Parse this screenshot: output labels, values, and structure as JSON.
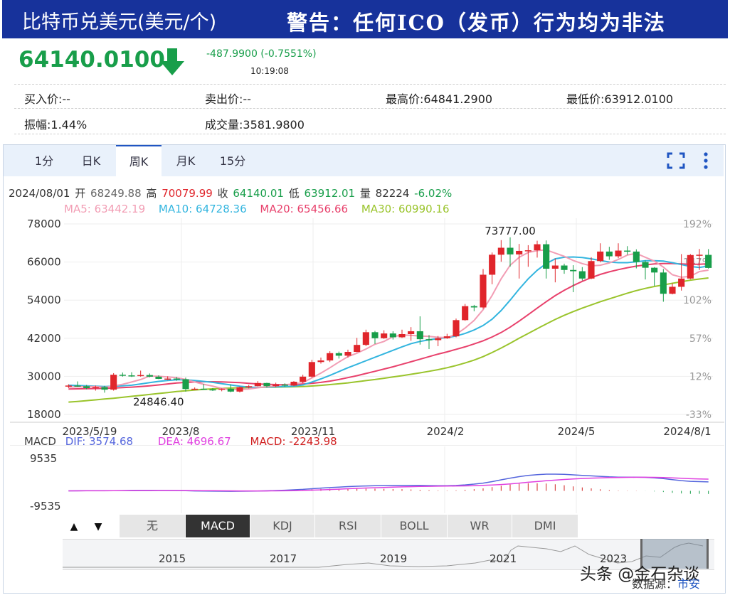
{
  "header": {
    "title": "比特币兑美元(美元/个)",
    "warning": "警告：任何ICO（发币）行为均为非法"
  },
  "quote": {
    "price": "64140.0100",
    "change": "-487.9900 (-0.7551%)",
    "time": "10:19:08",
    "bid": "买入价:--",
    "ask": "卖出价:--",
    "high": "最高价:64841.2900",
    "low": "最低价:63912.0100",
    "amplitude": "振幅:1.44%",
    "volume": "成交量:3581.9800"
  },
  "tabs": [
    "1分",
    "日K",
    "周K",
    "月K",
    "15分"
  ],
  "active_tab": "周K",
  "info_line": {
    "date": "2024/08/01",
    "open_label": "开",
    "open": "68249.88",
    "high_label": "高",
    "high": "70079.99",
    "close_label": "收",
    "close": "64140.01",
    "low_label": "低",
    "low": "63912.01",
    "vol_label": "量",
    "vol": "82224",
    "pct": "-6.02%"
  },
  "ma_line": {
    "ma5": "MA5: 63442.19",
    "ma10": "MA10: 64728.36",
    "ma20": "MA20: 65456.66",
    "ma30": "MA30: 60990.16"
  },
  "macd_line": {
    "label": "MACD",
    "dif": "DIF: 3574.68",
    "dea": "DEA: 4696.67",
    "macd": "MACD: -2243.98"
  },
  "indicator_buttons": [
    "无",
    "MACD",
    "KDJ",
    "RSI",
    "BOLL",
    "WR",
    "DMI"
  ],
  "active_indicator": "MACD",
  "arrow_up": "▲",
  "arrow_down": "▼",
  "navigator_years": [
    "2015",
    "2017",
    "2019",
    "2021",
    "2023"
  ],
  "watermark": "头条 @金石杂谈",
  "source_label": "数据源：",
  "source_link": "市安",
  "colors": {
    "banner": "#17329b",
    "up": "#e0252b",
    "down": "#189e4a",
    "ma5": "#f29db4",
    "ma10": "#33b5df",
    "ma20": "#e8416c",
    "ma30": "#9ac42c",
    "dif": "#5566dd",
    "dea": "#e040e0",
    "macd": "#d02020"
  },
  "chart_data": [
    {
      "type": "candlestick",
      "period": "weekly",
      "y_axis_left": [
        "78000",
        "66000",
        "54000",
        "42000",
        "30000",
        "18000"
      ],
      "y_axis_right": [
        "192%",
        "147%",
        "102%",
        "57%",
        "12%",
        "-33%"
      ],
      "ylim": [
        18000,
        78000
      ],
      "x_tick_labels": [
        "2023/5/19",
        "2023/8",
        "2023/11",
        "2024/2",
        "2024/5",
        "2024/8/1"
      ],
      "annotations": [
        "73777.00",
        "24846.40"
      ],
      "candles": [
        {
          "date": "2023/05/19",
          "o": 26800,
          "h": 27500,
          "l": 26300,
          "c": 27100
        },
        {
          "o": 27100,
          "h": 28400,
          "l": 26700,
          "c": 26900
        },
        {
          "o": 26900,
          "h": 27300,
          "l": 25900,
          "c": 26300
        },
        {
          "o": 26300,
          "h": 27100,
          "l": 25500,
          "c": 26600
        },
        {
          "o": 26600,
          "h": 27000,
          "l": 24846.4,
          "c": 25800
        },
        {
          "o": 25800,
          "h": 31000,
          "l": 25500,
          "c": 30500
        },
        {
          "o": 30500,
          "h": 31200,
          "l": 29900,
          "c": 30300
        },
        {
          "o": 30300,
          "h": 31300,
          "l": 29800,
          "c": 30200
        },
        {
          "o": 30200,
          "h": 31800,
          "l": 29900,
          "c": 30400
        },
        {
          "o": 30400,
          "h": 30900,
          "l": 29700,
          "c": 29900
        },
        {
          "o": 29900,
          "h": 30300,
          "l": 29100,
          "c": 29200
        },
        {
          "o": 29200,
          "h": 30000,
          "l": 28800,
          "c": 29300
        },
        {
          "o": 29300,
          "h": 29800,
          "l": 28600,
          "c": 29100
        },
        {
          "o": 29100,
          "h": 29600,
          "l": 25200,
          "c": 26000
        },
        {
          "o": 26000,
          "h": 26500,
          "l": 25700,
          "c": 26100
        },
        {
          "o": 26100,
          "h": 27600,
          "l": 25800,
          "c": 25900
        },
        {
          "o": 25900,
          "h": 26300,
          "l": 25400,
          "c": 25800
        },
        {
          "o": 25800,
          "h": 26200,
          "l": 25300,
          "c": 26100
        },
        {
          "o": 26100,
          "h": 27500,
          "l": 25000,
          "c": 25200
        },
        {
          "o": 25200,
          "h": 26800,
          "l": 24900,
          "c": 26600
        },
        {
          "o": 26600,
          "h": 27300,
          "l": 26200,
          "c": 26900
        },
        {
          "o": 26900,
          "h": 28500,
          "l": 26800,
          "c": 27900
        },
        {
          "o": 27900,
          "h": 28000,
          "l": 26500,
          "c": 26900
        },
        {
          "o": 26900,
          "h": 28000,
          "l": 26600,
          "c": 27400
        },
        {
          "o": 27400,
          "h": 27800,
          "l": 26700,
          "c": 27100
        },
        {
          "o": 27100,
          "h": 28500,
          "l": 26900,
          "c": 28300
        },
        {
          "o": 28300,
          "h": 30500,
          "l": 27800,
          "c": 29900
        },
        {
          "date": "2023/11",
          "o": 29900,
          "h": 35200,
          "l": 29600,
          "c": 34500
        },
        {
          "o": 34500,
          "h": 35900,
          "l": 34000,
          "c": 35000
        },
        {
          "o": 35000,
          "h": 37900,
          "l": 34500,
          "c": 37300
        },
        {
          "o": 37300,
          "h": 37800,
          "l": 35600,
          "c": 36500
        },
        {
          "o": 36500,
          "h": 38400,
          "l": 35900,
          "c": 37700
        },
        {
          "o": 37700,
          "h": 42100,
          "l": 37600,
          "c": 39900
        },
        {
          "o": 39900,
          "h": 44700,
          "l": 39500,
          "c": 43900
        },
        {
          "o": 43900,
          "h": 44300,
          "l": 40200,
          "c": 42000
        },
        {
          "o": 42000,
          "h": 44500,
          "l": 41800,
          "c": 43500
        },
        {
          "o": 43500,
          "h": 44200,
          "l": 41600,
          "c": 42300
        },
        {
          "o": 42300,
          "h": 44700,
          "l": 42100,
          "c": 43300
        },
        {
          "o": 43300,
          "h": 45500,
          "l": 41200,
          "c": 44200
        },
        {
          "o": 44200,
          "h": 48900,
          "l": 40000,
          "c": 41700
        },
        {
          "o": 41700,
          "h": 43000,
          "l": 38600,
          "c": 41400
        },
        {
          "o": 41400,
          "h": 42700,
          "l": 39500,
          "c": 42000
        },
        {
          "o": 42000,
          "h": 43400,
          "l": 41800,
          "c": 42600
        },
        {
          "date": "2024/2",
          "o": 42600,
          "h": 48200,
          "l": 42300,
          "c": 47700
        },
        {
          "o": 47700,
          "h": 52800,
          "l": 47500,
          "c": 52100
        },
        {
          "o": 52100,
          "h": 52500,
          "l": 50500,
          "c": 51700
        },
        {
          "o": 51700,
          "h": 63800,
          "l": 51300,
          "c": 62000
        },
        {
          "o": 62000,
          "h": 69000,
          "l": 59000,
          "c": 68300
        },
        {
          "o": 68300,
          "h": 72900,
          "l": 66100,
          "c": 70500
        },
        {
          "o": 70500,
          "h": 73777,
          "l": 64500,
          "c": 68400
        },
        {
          "o": 68400,
          "h": 71700,
          "l": 60800,
          "c": 69500
        },
        {
          "o": 69500,
          "h": 71300,
          "l": 64500,
          "c": 69700
        },
        {
          "o": 69700,
          "h": 72700,
          "l": 67400,
          "c": 71600
        },
        {
          "o": 71600,
          "h": 72800,
          "l": 60800,
          "c": 63900
        },
        {
          "o": 63900,
          "h": 67100,
          "l": 59600,
          "c": 64900
        },
        {
          "o": 64900,
          "h": 65500,
          "l": 62300,
          "c": 63500
        },
        {
          "date": "2024/5",
          "o": 63500,
          "h": 65000,
          "l": 56500,
          "c": 63100
        },
        {
          "o": 63100,
          "h": 64400,
          "l": 60200,
          "c": 60800
        },
        {
          "o": 60800,
          "h": 67500,
          "l": 60600,
          "c": 66300
        },
        {
          "o": 66300,
          "h": 71900,
          "l": 65900,
          "c": 69300
        },
        {
          "o": 69300,
          "h": 70800,
          "l": 66700,
          "c": 67800
        },
        {
          "o": 67800,
          "h": 71900,
          "l": 67200,
          "c": 69600
        },
        {
          "o": 69600,
          "h": 71000,
          "l": 68300,
          "c": 69300
        },
        {
          "o": 69300,
          "h": 70000,
          "l": 64000,
          "c": 66000
        },
        {
          "o": 66000,
          "h": 66500,
          "l": 60500,
          "c": 64200
        },
        {
          "o": 64200,
          "h": 64400,
          "l": 58500,
          "c": 62700
        },
        {
          "o": 62700,
          "h": 63800,
          "l": 53500,
          "c": 56000
        },
        {
          "o": 56000,
          "h": 59300,
          "l": 55800,
          "c": 58200
        },
        {
          "o": 58200,
          "h": 68500,
          "l": 57000,
          "c": 60800
        },
        {
          "o": 60800,
          "h": 68500,
          "l": 60600,
          "c": 68200
        },
        {
          "o": 68200,
          "h": 70100,
          "l": 63500,
          "c": 68300
        },
        {
          "date": "2024/08/01",
          "o": 68249.88,
          "h": 70079.99,
          "l": 63912.01,
          "c": 64140.01
        }
      ],
      "moving_averages": {
        "MA5": [
          26600,
          26700,
          26750,
          26800,
          26500,
          27000,
          27500,
          28200,
          29000,
          30100,
          30000,
          29800,
          29600,
          29000,
          28200,
          27500,
          26900,
          26200,
          25800,
          25900,
          26000,
          26400,
          26700,
          27000,
          27300,
          27600,
          28000,
          29500,
          31000,
          32700,
          34500,
          36200,
          37300,
          38600,
          40100,
          41000,
          42500,
          43000,
          42900,
          42700,
          42600,
          42300,
          42200,
          43200,
          45200,
          47600,
          51000,
          55500,
          60700,
          65000,
          67500,
          69000,
          69600,
          69800,
          68800,
          67800,
          66500,
          65500,
          64800,
          65000,
          65700,
          66800,
          68200,
          68700,
          67500,
          66300,
          64400,
          62000,
          61200,
          61500,
          63000,
          63442.19
        ],
        "MA10": [
          27200,
          27100,
          27000,
          26900,
          26800,
          26900,
          27000,
          27200,
          27600,
          28000,
          28400,
          28700,
          28900,
          28900,
          28700,
          28400,
          28100,
          27700,
          27300,
          26900,
          26600,
          26500,
          26600,
          26700,
          26800,
          26900,
          27300,
          28200,
          29200,
          30300,
          31500,
          32700,
          33800,
          34900,
          36000,
          37100,
          38200,
          39300,
          40300,
          41000,
          41500,
          41900,
          42200,
          42700,
          43500,
          44600,
          46000,
          48000,
          50700,
          54000,
          57500,
          60700,
          63400,
          65500,
          67000,
          67500,
          67600,
          67400,
          67000,
          66500,
          66000,
          65800,
          65800,
          66100,
          66400,
          66400,
          66300,
          65800,
          65200,
          64600,
          64300,
          64728.36
        ],
        "MA20": [
          26000,
          26050,
          26100,
          26150,
          26200,
          26300,
          26450,
          26600,
          26800,
          27000,
          27300,
          27600,
          27900,
          28100,
          28200,
          28300,
          28300,
          28250,
          28150,
          28000,
          27800,
          27600,
          27500,
          27400,
          27400,
          27450,
          27550,
          27800,
          28100,
          28500,
          29000,
          29600,
          30200,
          30900,
          31600,
          32300,
          33000,
          33800,
          34600,
          35400,
          36200,
          37000,
          37700,
          38500,
          39300,
          40200,
          41200,
          42400,
          43800,
          45500,
          47400,
          49400,
          51500,
          53500,
          55400,
          57100,
          58600,
          59900,
          61100,
          62100,
          62900,
          63600,
          64200,
          64700,
          65100,
          65400,
          65500,
          65500,
          65400,
          65300,
          65300,
          65456.66
        ],
        "MA30": [
          21900,
          22100,
          22350,
          22600,
          22850,
          23100,
          23400,
          23700,
          24000,
          24300,
          24600,
          24900,
          25200,
          25450,
          25700,
          25900,
          26050,
          26200,
          26300,
          26400,
          26450,
          26500,
          26550,
          26600,
          26650,
          26700,
          26800,
          26950,
          27150,
          27400,
          27650,
          27950,
          28300,
          28650,
          29000,
          29400,
          29800,
          30200,
          30650,
          31100,
          31600,
          32100,
          32700,
          33400,
          34200,
          35100,
          36200,
          37500,
          38900,
          40400,
          42000,
          43500,
          45000,
          46500,
          47900,
          49200,
          50400,
          51500,
          52500,
          53500,
          54400,
          55300,
          56200,
          57000,
          57700,
          58300,
          58800,
          59300,
          59800,
          60300,
          60650,
          60990.16
        ]
      }
    },
    {
      "type": "line",
      "indicator": "MACD",
      "y_axis_labels": [
        "9535",
        "-9535"
      ],
      "ylim": [
        -9535,
        9535
      ],
      "series": [
        {
          "name": "DIF",
          "values": [
            0,
            40,
            60,
            80,
            70,
            90,
            120,
            160,
            200,
            220,
            200,
            170,
            130,
            60,
            -20,
            -70,
            -110,
            -140,
            -160,
            -150,
            -120,
            -60,
            20,
            130,
            260,
            420,
            600,
            850,
            1100,
            1300,
            1500,
            1700,
            1850,
            1950,
            2050,
            2100,
            2150,
            2200,
            2200,
            2150,
            2100,
            2050,
            2050,
            2150,
            2400,
            2700,
            3100,
            3700,
            4400,
            5100,
            5700,
            6200,
            6500,
            6700,
            6700,
            6600,
            6400,
            6200,
            6000,
            5800,
            5600,
            5500,
            5500,
            5500,
            5400,
            5200,
            4900,
            4500,
            4100,
            3800,
            3700,
            3574.68
          ]
        },
        {
          "name": "DEA",
          "values": [
            0,
            10,
            20,
            30,
            40,
            50,
            60,
            80,
            100,
            120,
            130,
            140,
            140,
            130,
            110,
            80,
            50,
            20,
            -10,
            -30,
            -40,
            -40,
            -30,
            -10,
            30,
            90,
            170,
            280,
            400,
            540,
            690,
            840,
            990,
            1130,
            1260,
            1380,
            1490,
            1590,
            1680,
            1760,
            1820,
            1870,
            1910,
            1950,
            2000,
            2080,
            2180,
            2330,
            2540,
            2800,
            3110,
            3430,
            3740,
            4040,
            4310,
            4560,
            4770,
            4950,
            5100,
            5220,
            5300,
            5360,
            5400,
            5430,
            5430,
            5400,
            5320,
            5200,
            5040,
            4880,
            4760,
            4696.67
          ]
        },
        {
          "name": "MACD",
          "values": [
            0,
            60,
            80,
            100,
            60,
            80,
            120,
            160,
            200,
            200,
            140,
            60,
            -20,
            -140,
            -260,
            -300,
            -320,
            -320,
            -300,
            -240,
            -160,
            -40,
            100,
            280,
            460,
            660,
            860,
            1140,
            1400,
            1520,
            1620,
            1720,
            1720,
            1640,
            1580,
            1440,
            1320,
            1220,
            1040,
            780,
            560,
            360,
            280,
            400,
            800,
            1240,
            1840,
            2740,
            3720,
            4600,
            5180,
            5540,
            5520,
            5320,
            4780,
            4080,
            3260,
            2500,
            1800,
            1160,
            600,
            280,
            200,
            140,
            -60,
            -400,
            -840,
            -1400,
            -1880,
            -2160,
            -2120,
            -2243.98
          ]
        }
      ]
    }
  ]
}
